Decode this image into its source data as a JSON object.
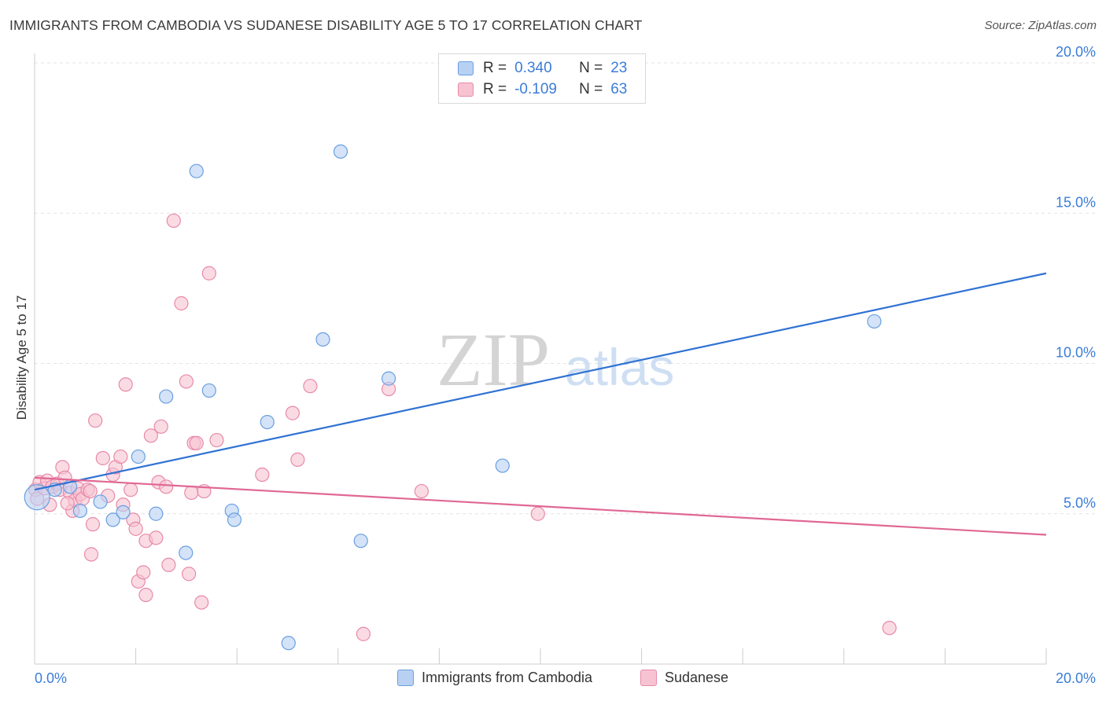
{
  "title": "IMMIGRANTS FROM CAMBODIA VS SUDANESE DISABILITY AGE 5 TO 17 CORRELATION CHART",
  "source": "Source: ZipAtlas.com",
  "watermark": {
    "zip": "ZIP",
    "atlas": "atlas"
  },
  "stats": [
    {
      "r_label": "R =",
      "r_value": "0.340",
      "n_label": "N =",
      "n_value": "23"
    },
    {
      "r_label": "R =",
      "r_value": "-0.109",
      "n_label": "N =",
      "n_value": "63"
    }
  ],
  "legend": [
    "Immigrants from Cambodia",
    "Sudanese"
  ],
  "colors": {
    "blue_fill": "#b8d1f3",
    "blue_stroke": "#6a9fe0",
    "blue_line": "#2f72d3",
    "pink_fill": "#f7c3d2",
    "pink_stroke": "#e88aa8",
    "pink_line": "#e06894",
    "tick_text": "#3b7dd8",
    "grid": "#e3e3e3"
  },
  "chart_data": {
    "type": "scatter",
    "xlabel": "",
    "ylabel": "Disability Age 5 to 17",
    "xlim": [
      0,
      20
    ],
    "ylim": [
      0,
      20
    ],
    "x_tick_labels": [
      "0.0%",
      "20.0%"
    ],
    "y_ticks": [
      5,
      10,
      15,
      20
    ],
    "y_tick_labels": [
      "5.0%",
      "10.0%",
      "15.0%",
      "20.0%"
    ],
    "grid": true,
    "legend_position": "bottom-center",
    "series": [
      {
        "name": "Immigrants from Cambodia",
        "points": [
          [
            0.05,
            5.55
          ],
          [
            0.4,
            5.8
          ],
          [
            0.7,
            5.9
          ],
          [
            0.9,
            5.1
          ],
          [
            1.3,
            5.4
          ],
          [
            1.55,
            4.8
          ],
          [
            1.75,
            5.05
          ],
          [
            2.05,
            6.9
          ],
          [
            2.4,
            5.0
          ],
          [
            2.6,
            8.9
          ],
          [
            2.99,
            3.7
          ],
          [
            3.2,
            16.4
          ],
          [
            3.45,
            9.1
          ],
          [
            3.9,
            5.1
          ],
          [
            3.95,
            4.8
          ],
          [
            4.6,
            8.05
          ],
          [
            5.02,
            0.7
          ],
          [
            5.7,
            10.8
          ],
          [
            6.05,
            17.05
          ],
          [
            6.45,
            4.1
          ],
          [
            7.0,
            9.5
          ],
          [
            9.25,
            6.6
          ],
          [
            16.6,
            11.4
          ]
        ],
        "trend": {
          "x": [
            0,
            20
          ],
          "y": [
            5.8,
            13.0
          ]
        }
      },
      {
        "name": "Sudanese",
        "points": [
          [
            0.02,
            5.8
          ],
          [
            0.05,
            5.5
          ],
          [
            0.1,
            6.05
          ],
          [
            0.2,
            5.85
          ],
          [
            0.25,
            6.1
          ],
          [
            0.35,
            5.9
          ],
          [
            0.45,
            6.0
          ],
          [
            0.5,
            5.8
          ],
          [
            0.55,
            6.55
          ],
          [
            0.6,
            6.2
          ],
          [
            0.7,
            5.7
          ],
          [
            0.75,
            5.1
          ],
          [
            0.8,
            5.45
          ],
          [
            0.85,
            5.85
          ],
          [
            0.9,
            5.65
          ],
          [
            0.95,
            5.5
          ],
          [
            1.05,
            5.8
          ],
          [
            1.1,
            5.75
          ],
          [
            1.12,
            3.65
          ],
          [
            1.15,
            4.65
          ],
          [
            1.2,
            8.1
          ],
          [
            1.35,
            6.85
          ],
          [
            1.45,
            5.6
          ],
          [
            1.55,
            6.3
          ],
          [
            1.6,
            6.55
          ],
          [
            1.7,
            6.9
          ],
          [
            1.75,
            5.3
          ],
          [
            1.8,
            9.3
          ],
          [
            1.9,
            5.8
          ],
          [
            1.95,
            4.8
          ],
          [
            2.0,
            4.5
          ],
          [
            2.05,
            2.75
          ],
          [
            2.15,
            3.05
          ],
          [
            2.2,
            4.1
          ],
          [
            2.3,
            7.6
          ],
          [
            2.4,
            4.2
          ],
          [
            2.45,
            6.05
          ],
          [
            2.5,
            7.9
          ],
          [
            2.6,
            5.9
          ],
          [
            2.65,
            3.3
          ],
          [
            2.75,
            14.75
          ],
          [
            2.9,
            12.0
          ],
          [
            3.0,
            9.4
          ],
          [
            3.05,
            3.0
          ],
          [
            3.1,
            5.7
          ],
          [
            3.15,
            7.35
          ],
          [
            3.2,
            7.35
          ],
          [
            3.3,
            2.05
          ],
          [
            3.35,
            5.75
          ],
          [
            3.45,
            13.0
          ],
          [
            3.6,
            7.45
          ],
          [
            4.5,
            6.3
          ],
          [
            5.1,
            8.35
          ],
          [
            5.2,
            6.8
          ],
          [
            5.45,
            9.25
          ],
          [
            6.5,
            1.0
          ],
          [
            7.0,
            9.15
          ],
          [
            7.65,
            5.75
          ],
          [
            9.95,
            5.0
          ],
          [
            16.9,
            1.2
          ],
          [
            0.3,
            5.3
          ],
          [
            0.65,
            5.35
          ],
          [
            2.2,
            2.3
          ]
        ],
        "trend": {
          "x": [
            0,
            20
          ],
          "y": [
            6.2,
            4.3
          ]
        }
      }
    ]
  }
}
